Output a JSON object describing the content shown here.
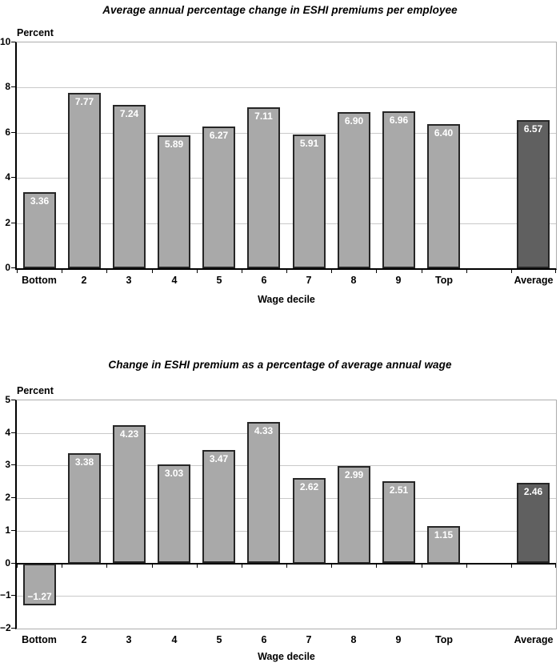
{
  "colors": {
    "background": "#ffffff",
    "text": "#000000",
    "bar_fill": "#a9a9a9",
    "bar_fill_highlight": "#606060",
    "bar_border": "#262626",
    "gridline": "#c9c9c9",
    "plot_border": "#adadad",
    "axis": "#000000",
    "value_label_text": "#ffffff"
  },
  "chart_data": [
    {
      "type": "bar",
      "title": "Average annual percentage change in ESHI premiums per employee",
      "ylabel": "Percent",
      "xlabel": "Wage decile",
      "categories": [
        "Bottom",
        "2",
        "3",
        "4",
        "5",
        "6",
        "7",
        "8",
        "9",
        "Top",
        "",
        "Average"
      ],
      "values": [
        3.36,
        7.77,
        7.24,
        5.89,
        6.27,
        7.11,
        5.91,
        6.9,
        6.96,
        6.4,
        null,
        6.57
      ],
      "value_labels": [
        "3.36",
        "7.77",
        "7.24",
        "5.89",
        "6.27",
        "7.11",
        "5.91",
        "6.90",
        "6.96",
        "6.40",
        "",
        "6.57"
      ],
      "ylim": [
        0,
        10
      ],
      "ytick_step": 2,
      "ytick_labels": [
        "10",
        "8",
        "6",
        "4",
        "2",
        "0"
      ],
      "grid": true,
      "legend": "none",
      "highlight_index": 11
    },
    {
      "type": "bar",
      "title": "Change in ESHI premium as a percentage of average annual wage",
      "ylabel": "Percent",
      "xlabel": "Wage decile",
      "categories": [
        "Bottom",
        "2",
        "3",
        "4",
        "5",
        "6",
        "7",
        "8",
        "9",
        "Top",
        "",
        "Average"
      ],
      "values": [
        -1.27,
        3.38,
        4.23,
        3.03,
        3.47,
        4.33,
        2.62,
        2.99,
        2.51,
        1.15,
        null,
        2.46
      ],
      "value_labels": [
        "−1.27",
        "3.38",
        "4.23",
        "3.03",
        "3.47",
        "4.33",
        "2.62",
        "2.99",
        "2.51",
        "1.15",
        "",
        "2.46"
      ],
      "ylim": [
        -2,
        5
      ],
      "ytick_step": 1,
      "ytick_labels": [
        "5",
        "4",
        "3",
        "2",
        "1",
        "0",
        "−1",
        "−2"
      ],
      "grid": true,
      "legend": "none",
      "highlight_index": 11
    }
  ]
}
